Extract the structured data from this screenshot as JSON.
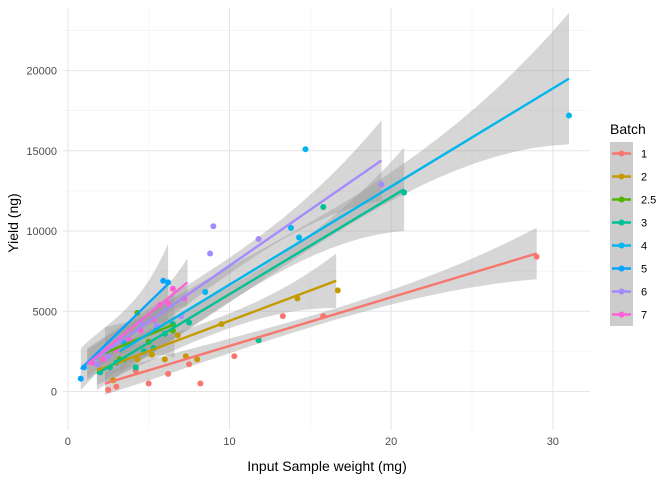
{
  "chart_data": {
    "type": "scatter",
    "title": "",
    "xlabel": "Input Sample weight  (mg)",
    "ylabel": "Yield (ng)",
    "xlim": [
      -0.3,
      32.3
    ],
    "ylim": [
      -2400,
      23900
    ],
    "x_ticks": [
      0,
      10,
      20,
      30
    ],
    "y_ticks": [
      0,
      5000,
      10000,
      15000,
      20000
    ],
    "x_tick_labels": [
      "0",
      "10",
      "20",
      "30"
    ],
    "y_tick_labels": [
      "0",
      "5000",
      "10000",
      "15000",
      "20000"
    ],
    "grid": true,
    "legend": {
      "title": "Batch",
      "position": "right"
    },
    "series": [
      {
        "name": "1",
        "color": "#F8766D",
        "points": [
          [
            2.5,
            100
          ],
          [
            3.0,
            300
          ],
          [
            4.2,
            1300
          ],
          [
            5.0,
            500
          ],
          [
            6.2,
            1100
          ],
          [
            7.5,
            1700
          ],
          [
            8.2,
            500
          ],
          [
            10.3,
            2200
          ],
          [
            11.8,
            3200
          ],
          [
            13.3,
            4700
          ],
          [
            15.8,
            4700
          ],
          [
            29.0,
            8400
          ]
        ],
        "fit": {
          "x0": 2.3,
          "x1": 29.0,
          "y0": 500,
          "y1": 8600,
          "band0": 700,
          "band1": 1600,
          "bandmid": 350
        }
      },
      {
        "name": "2",
        "color": "#C49A00",
        "points": [
          [
            2.0,
            1300
          ],
          [
            2.8,
            700
          ],
          [
            4.3,
            2000
          ],
          [
            5.2,
            2300
          ],
          [
            6.0,
            2000
          ],
          [
            6.8,
            3500
          ],
          [
            7.3,
            2200
          ],
          [
            8.0,
            2000
          ],
          [
            9.5,
            4200
          ],
          [
            14.2,
            5800
          ],
          [
            16.7,
            6300
          ]
        ],
        "fit": {
          "x0": 1.8,
          "x1": 16.6,
          "y0": 1300,
          "y1": 6900,
          "band0": 900,
          "band1": 1700,
          "bandmid": 450
        }
      },
      {
        "name": "2.5",
        "color": "#53B400",
        "points": [
          [
            2.4,
            2500
          ],
          [
            3.2,
            2000
          ],
          [
            4.3,
            4900
          ],
          [
            5.0,
            3100
          ],
          [
            6.5,
            3800
          ]
        ],
        "fit": {
          "x0": 2.3,
          "x1": 6.6,
          "y0": 2400,
          "y1": 4200,
          "band0": 1600,
          "band1": 2100,
          "bandmid": 1300
        }
      },
      {
        "name": "3",
        "color": "#00C094",
        "points": [
          [
            2.0,
            1200
          ],
          [
            2.6,
            1500
          ],
          [
            3.0,
            1800
          ],
          [
            3.5,
            2000
          ],
          [
            4.2,
            1500
          ],
          [
            4.7,
            2500
          ],
          [
            5.3,
            2700
          ],
          [
            6.0,
            3600
          ],
          [
            6.5,
            4200
          ],
          [
            7.5,
            4300
          ],
          [
            11.8,
            3200
          ],
          [
            15.8,
            11500
          ],
          [
            20.8,
            12400
          ]
        ],
        "fit": {
          "x0": 1.8,
          "x1": 20.8,
          "y0": 1100,
          "y1": 12600,
          "band0": 1000,
          "band1": 2600,
          "bandmid": 450
        }
      },
      {
        "name": "4",
        "color": "#00B6EB",
        "points": [
          [
            3.5,
            3000
          ],
          [
            5.5,
            4000
          ],
          [
            8.5,
            6200
          ],
          [
            13.8,
            10200
          ],
          [
            14.3,
            9600
          ],
          [
            14.7,
            15100
          ],
          [
            31.0,
            17200
          ]
        ],
        "fit": {
          "x0": 3.2,
          "x1": 31.0,
          "y0": 2500,
          "y1": 19500,
          "band0": 1300,
          "band1": 4100,
          "bandmid": 800
        }
      },
      {
        "name": "5",
        "color": "#06A4FF",
        "points": [
          [
            0.8,
            800
          ],
          [
            1.0,
            1500
          ],
          [
            5.9,
            6900
          ],
          [
            6.2,
            6800
          ]
        ],
        "fit": {
          "x0": 0.8,
          "x1": 6.2,
          "y0": 1400,
          "y1": 6700,
          "band0": 1300,
          "band1": 2500,
          "bandmid": 1000
        }
      },
      {
        "name": "6",
        "color": "#A58AFF",
        "points": [
          [
            1.8,
            1700
          ],
          [
            2.5,
            2200
          ],
          [
            3.2,
            3300
          ],
          [
            4.5,
            4300
          ],
          [
            5.5,
            4100
          ],
          [
            7.0,
            4700
          ],
          [
            8.8,
            8600
          ],
          [
            9.0,
            10300
          ],
          [
            11.8,
            9500
          ],
          [
            19.4,
            12900
          ]
        ],
        "fit": {
          "x0": 1.2,
          "x1": 19.4,
          "y0": 1700,
          "y1": 14400,
          "band0": 1000,
          "band1": 2500,
          "bandmid": 500
        }
      },
      {
        "name": "7",
        "color": "#FB61D7",
        "points": [
          [
            1.5,
            1800
          ],
          [
            2.2,
            2000
          ],
          [
            3.0,
            2600
          ],
          [
            3.8,
            3200
          ],
          [
            4.5,
            3800
          ],
          [
            5.3,
            4500
          ],
          [
            5.7,
            5400
          ],
          [
            6.2,
            5500
          ],
          [
            6.5,
            6400
          ],
          [
            7.2,
            5800
          ]
        ],
        "fit": {
          "x0": 1.2,
          "x1": 7.4,
          "y0": 1700,
          "y1": 6800,
          "band0": 900,
          "band1": 1500,
          "bandmid": 500
        }
      }
    ]
  }
}
